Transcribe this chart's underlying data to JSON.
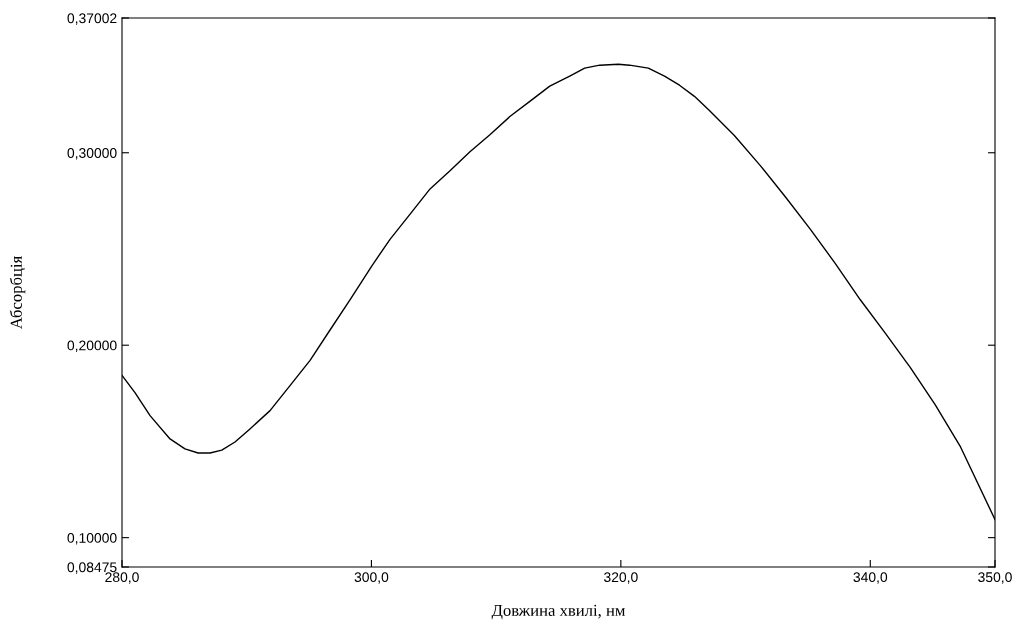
{
  "chart_data": {
    "type": "line",
    "xlabel": "Довжина хвилі, нм",
    "ylabel": "Абсорбція",
    "xlim": [
      280,
      350
    ],
    "ylim": [
      0.08475,
      0.37002
    ],
    "xticks": [
      {
        "value": 280,
        "label": "280,0"
      },
      {
        "value": 300,
        "label": "300,0"
      },
      {
        "value": 320,
        "label": "320,0"
      },
      {
        "value": 340,
        "label": "340,0"
      },
      {
        "value": 350,
        "label": "350,0"
      }
    ],
    "yticks": [
      {
        "value": 0.08475,
        "label": "0,08475"
      },
      {
        "value": 0.1,
        "label": "0,10000"
      },
      {
        "value": 0.2,
        "label": "0,20000"
      },
      {
        "value": 0.3,
        "label": "0,30000"
      },
      {
        "value": 0.37002,
        "label": "0,37002"
      }
    ],
    "grid": false,
    "legend": false,
    "marker": "none",
    "line_style": "solid",
    "series": [
      {
        "color": "#000000",
        "x": [
          280,
          281.04,
          282.25,
          283.85,
          285.05,
          286.1,
          287.06,
          288.0,
          289.06,
          290.26,
          291.87,
          293.47,
          295.08,
          296.68,
          298.28,
          300.05,
          301.49,
          303.1,
          304.7,
          306.3,
          307.9,
          309.5,
          311.1,
          312.7,
          314.3,
          315.9,
          317.1,
          318.3,
          319.8,
          320.7,
          322.2,
          323.5,
          324.7,
          325.9,
          327.1,
          329.1,
          331.2,
          333.2,
          335.2,
          337.2,
          339.2,
          341.2,
          343.2,
          345.2,
          347.2,
          350
        ],
        "values": [
          0.1843,
          0.1754,
          0.1634,
          0.1513,
          0.1461,
          0.144,
          0.144,
          0.1455,
          0.1497,
          0.1565,
          0.166,
          0.179,
          0.1921,
          0.2079,
          0.2236,
          0.2414,
          0.255,
          0.2681,
          0.2812,
          0.2906,
          0.3005,
          0.3094,
          0.3188,
          0.3267,
          0.3346,
          0.3398,
          0.344,
          0.3455,
          0.346,
          0.3455,
          0.344,
          0.3398,
          0.3351,
          0.3293,
          0.322,
          0.309,
          0.2932,
          0.277,
          0.2602,
          0.2424,
          0.2236,
          0.2063,
          0.1885,
          0.1691,
          0.1476,
          0.1094
        ]
      }
    ]
  }
}
